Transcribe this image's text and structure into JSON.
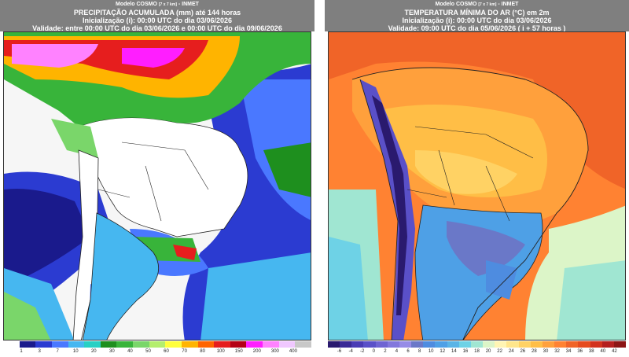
{
  "left_panel": {
    "model_line": "Modelo COSMO",
    "model_res": "[7 x 7 km]",
    "model_org": "- INMET",
    "title": "PRECIPITAÇÃO ACUMULADA (mm) até 144 horas",
    "init": "Inicialização (i): 00:00 UTC do dia 03/06/2026",
    "valid": "Validade: entre 00:00 UTC do dia 03/06/2026 e 00:00 UTC do dia 09/06/2026",
    "colorbar": {
      "ticks": [
        "1",
        "3",
        "7",
        "10",
        "20",
        "30",
        "40",
        "50",
        "60",
        "70",
        "80",
        "100",
        "150",
        "200",
        "300",
        "400"
      ],
      "colors": [
        "#ffffff",
        "#1a1a8c",
        "#2b3bd1",
        "#4a78ff",
        "#46b7f0",
        "#27d0c4",
        "#1e8f1e",
        "#38b43a",
        "#7ad66a",
        "#b4ee6e",
        "#ffff3c",
        "#ffb400",
        "#ff6400",
        "#e61e1e",
        "#b40014",
        "#ff1eff",
        "#ff82ff",
        "#f0c8ff",
        "#c8c8c8"
      ]
    }
  },
  "right_panel": {
    "model_line": "Modelo COSMO",
    "model_res": "[7 x 7 km]",
    "model_org": "- INMET",
    "title": "TEMPERATURA MÍNIMA DO AR (°C) em 2m",
    "init": "Inicialização (i): 00:00 UTC do dia 03/06/2026",
    "valid": "Validade: 09:00 UTC do dia 05/06/2026 ( i + 57 horas )",
    "colorbar": {
      "ticks": [
        "-6",
        "-4",
        "-2",
        "0",
        "2",
        "4",
        "6",
        "8",
        "10",
        "12",
        "14",
        "16",
        "18",
        "20",
        "22",
        "24",
        "26",
        "28",
        "30",
        "32",
        "34",
        "36",
        "38",
        "40",
        "42"
      ],
      "colors": [
        "#2a1a6e",
        "#3a2a96",
        "#4a3cb4",
        "#5a50c8",
        "#6e64d2",
        "#8278dc",
        "#968ce6",
        "#6a78c8",
        "#4e8ce0",
        "#4ea0e6",
        "#5ab4e6",
        "#6ed2e6",
        "#a0e6d2",
        "#dcf5c8",
        "#fff5b4",
        "#ffe68c",
        "#ffd264",
        "#ffbe46",
        "#ffa03c",
        "#ff8232",
        "#f06428",
        "#e64b1e",
        "#d2321e",
        "#b41e1e",
        "#8c1414"
      ]
    }
  }
}
